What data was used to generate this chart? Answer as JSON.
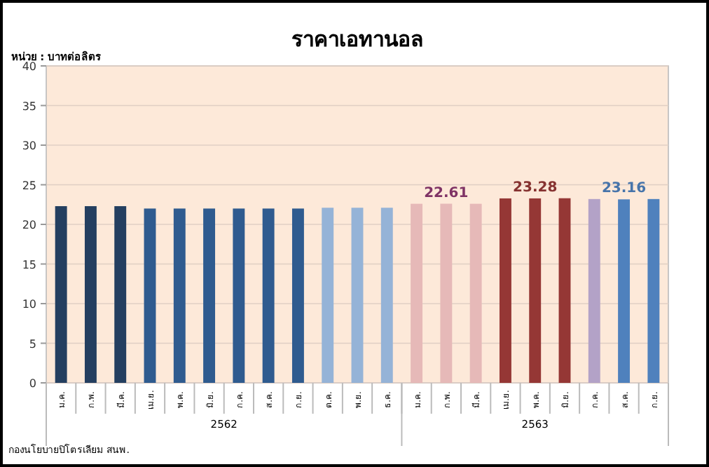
{
  "chart_data": {
    "type": "bar",
    "title": "ราคาเอทานอล",
    "ylabel": "หน่วย : บาทต่อลิตร",
    "categories": [
      "ม.ค.",
      "ก.พ.",
      "มี.ค.",
      "เม.ย.",
      "พ.ค.",
      "มิ.ย.",
      "ก.ค.",
      "ส.ค.",
      "ก.ย.",
      "ต.ค.",
      "พ.ย.",
      "ธ.ค.",
      "ม.ค.",
      "ก.พ.",
      "มี.ค.",
      "เม.ย.",
      "พ.ค.",
      "มิ.ย.",
      "ก.ค.",
      "ส.ค.",
      "ก.ย."
    ],
    "values": [
      22.3,
      22.3,
      22.3,
      22.0,
      22.0,
      22.0,
      22.0,
      22.0,
      22.0,
      22.1,
      22.1,
      22.1,
      22.6,
      22.61,
      22.6,
      23.28,
      23.28,
      23.3,
      23.2,
      23.16,
      23.2
    ],
    "value_labels": [
      null,
      null,
      null,
      null,
      null,
      null,
      null,
      null,
      null,
      null,
      null,
      null,
      null,
      "22.61",
      null,
      null,
      "23.28",
      null,
      null,
      "23.16",
      null
    ],
    "colors": [
      "#243f60",
      "#243f60",
      "#243f60",
      "#2f5b8f",
      "#2f5b8f",
      "#2f5b8f",
      "#2f5b8f",
      "#2f5b8f",
      "#2f5b8f",
      "#95b3d7",
      "#95b3d7",
      "#95b3d7",
      "#e6b9b8",
      "#e6b9b8",
      "#e6b9b8",
      "#953735",
      "#953735",
      "#953735",
      "#b3a2c7",
      "#4f81bd",
      "#4f81bd"
    ],
    "ylim": [
      0,
      40
    ],
    "yticks": [
      0,
      5,
      10,
      15,
      20,
      25,
      30,
      35,
      40
    ],
    "grid": "y",
    "annotations": [
      "2562",
      "2563",
      "กองนโยบายปิโตรเลียม สนพ."
    ]
  }
}
